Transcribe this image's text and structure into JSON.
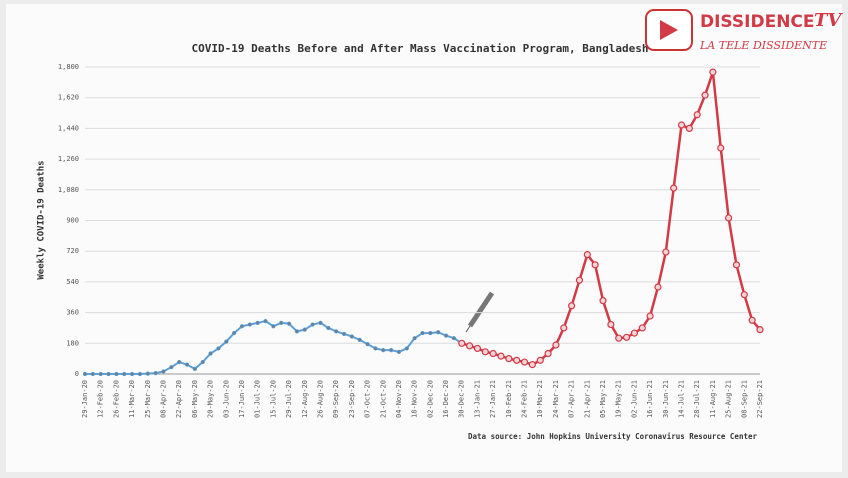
{
  "chart_data": {
    "type": "line",
    "title": "COVID-19 Deaths Before and After Mass Vaccination Program, Bangladesh",
    "y_label": "Weekly COVID-19 Deaths",
    "source": "Data source: John Hopkins University Coronavirus Resource Center",
    "categories": [
      "29-Jan-20",
      null,
      "12-Feb-20",
      null,
      "26-Feb-20",
      null,
      "11-Mar-20",
      null,
      "25-Mar-20",
      null,
      "08-Apr-20",
      null,
      "22-Apr-20",
      null,
      "06-May-20",
      null,
      "20-May-20",
      null,
      "03-Jun-20",
      null,
      "17-Jun-20",
      null,
      "01-Jul-20",
      null,
      "15-Jul-20",
      null,
      "29-Jul-20",
      null,
      "12-Aug-20",
      null,
      "26-Aug-20",
      null,
      "09-Sep-20",
      null,
      "23-Sep-20",
      null,
      "07-Oct-20",
      null,
      "21-Oct-20",
      null,
      "04-Nov-20",
      null,
      "18-Nov-20",
      null,
      "02-Dec-20",
      null,
      "16-Dec-20",
      null,
      "30-Dec-20",
      null,
      "13-Jan-21",
      null,
      "27-Jan-21",
      null,
      "10-Feb-21",
      null,
      "24-Feb-21",
      null,
      "10-Mar-21",
      null,
      "24-Mar-21",
      null,
      "07-Apr-21",
      null,
      "21-Apr-21",
      null,
      "05-May-21",
      null,
      "19-May-21",
      null,
      "02-Jun-21",
      null,
      "16-Jun-21",
      null,
      "30-Jun-21",
      null,
      "14-Jul-21",
      null,
      "28-Jul-21",
      null,
      "11-Aug-21",
      null,
      "25-Aug-21",
      null,
      "08-Sep-21",
      null,
      "22-Sep-21"
    ],
    "series": [
      {
        "color": "#5aa0d8",
        "values": [
          0,
          0,
          0,
          0,
          0,
          0,
          0,
          0,
          2,
          5,
          15,
          40,
          70,
          55,
          30,
          70,
          120,
          150,
          190,
          240,
          280,
          290,
          300,
          310,
          280,
          300,
          295,
          250,
          260,
          290,
          300,
          270,
          250,
          235,
          220,
          200,
          175,
          150,
          140,
          140,
          130,
          150,
          210,
          240,
          240,
          245,
          225,
          210,
          180,
          null,
          null,
          null,
          null,
          null,
          null,
          null,
          null,
          null,
          null,
          null,
          null,
          null,
          null,
          null,
          null,
          null,
          null,
          null,
          null,
          null,
          null,
          null,
          null,
          null,
          null,
          null,
          null,
          null,
          null,
          null,
          null,
          null,
          null,
          null,
          null,
          null,
          null
        ]
      },
      {
        "color": "#d23a46",
        "values": [
          null,
          null,
          null,
          null,
          null,
          null,
          null,
          null,
          null,
          null,
          null,
          null,
          null,
          null,
          null,
          null,
          null,
          null,
          null,
          null,
          null,
          null,
          null,
          null,
          null,
          null,
          null,
          null,
          null,
          null,
          null,
          null,
          null,
          null,
          null,
          null,
          null,
          null,
          null,
          null,
          null,
          null,
          null,
          null,
          null,
          null,
          null,
          null,
          180,
          165,
          150,
          130,
          120,
          105,
          90,
          80,
          70,
          55,
          80,
          120,
          170,
          270,
          400,
          550,
          700,
          640,
          430,
          290,
          210,
          215,
          240,
          270,
          340,
          510,
          715,
          1090,
          1460,
          1440,
          1520,
          1635,
          1770,
          1325,
          915,
          640,
          465,
          315,
          260
        ]
      }
    ],
    "ylim": [
      0,
      1800
    ],
    "yticks": [
      0,
      180,
      360,
      540,
      720,
      900,
      {
        "value": 1080,
        "label": "1,080"
      },
      {
        "value": 1260,
        "label": "1,260"
      },
      {
        "value": 1440,
        "label": "1,440"
      },
      {
        "value": 1620,
        "label": "1,620"
      },
      {
        "value": 1800,
        "label": "1,800"
      }
    ],
    "grid": true
  },
  "watermark": {
    "brand": "DISSIDENCE",
    "tv": "TV",
    "tagline": "LA TELE DISSIDENTE"
  }
}
